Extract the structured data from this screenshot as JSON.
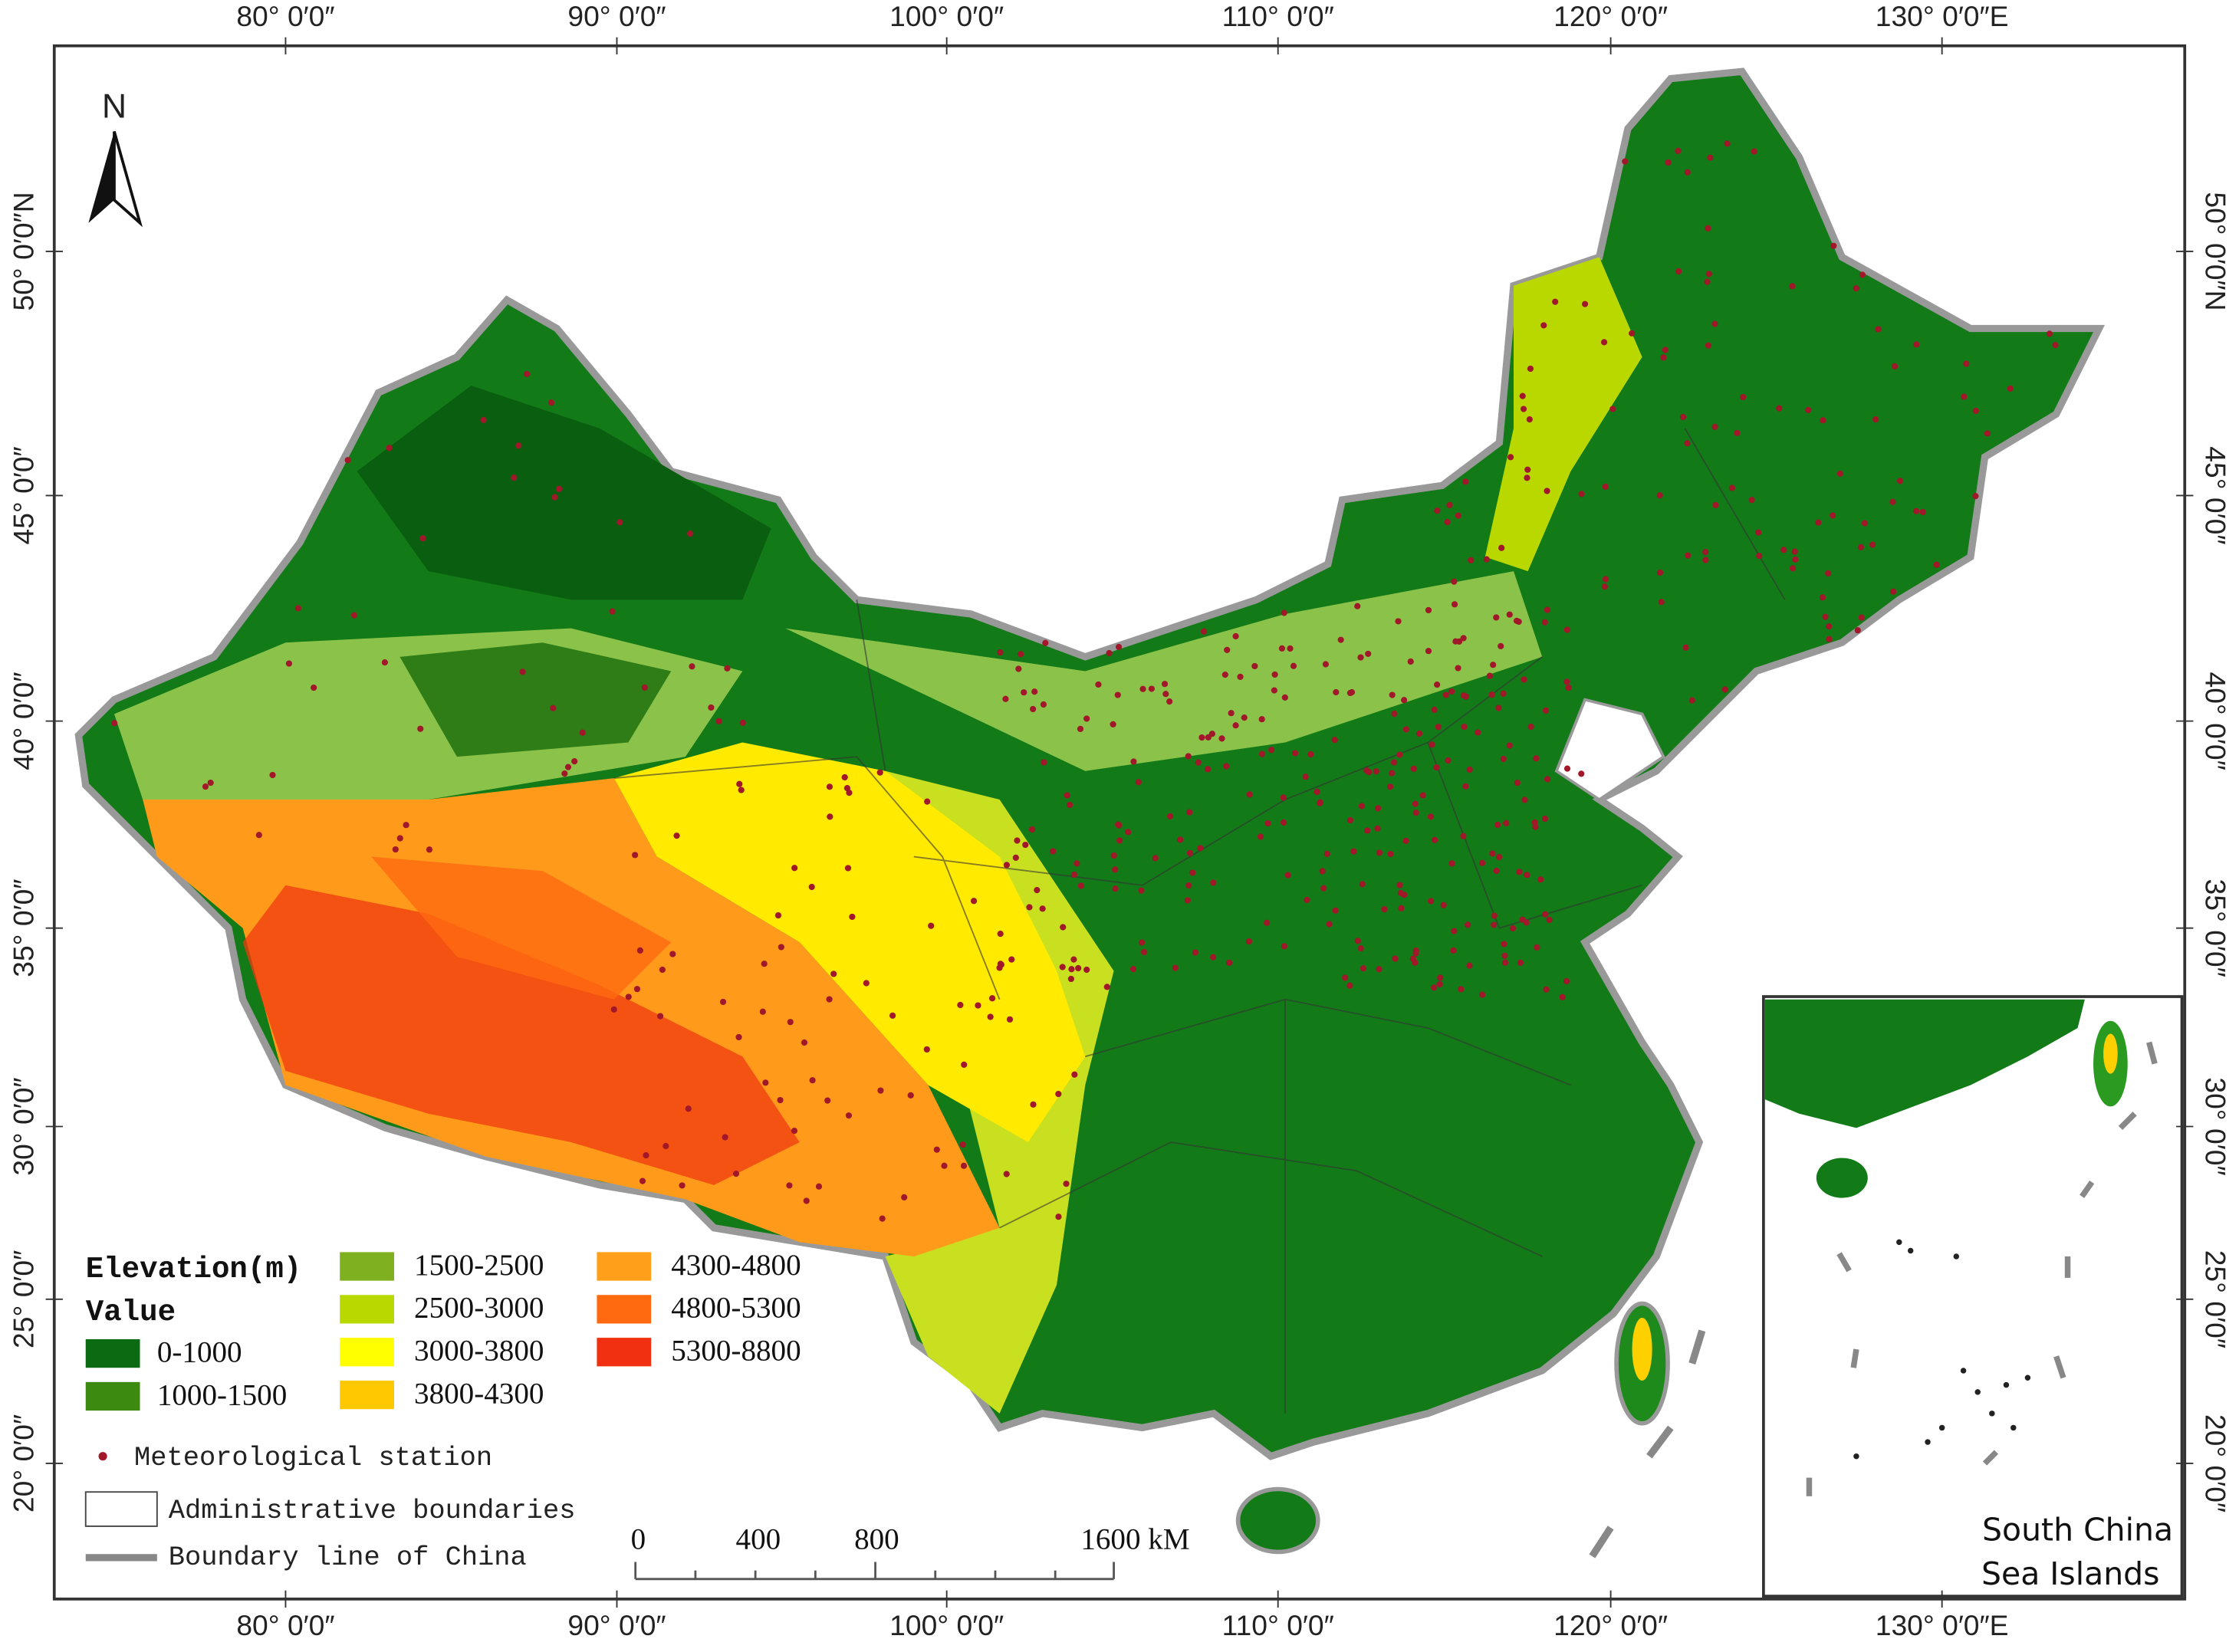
{
  "map": {
    "graticule": {
      "longitude_labels": [
        "80° 0′0″",
        "90° 0′0″",
        "100° 0′0″",
        "110° 0′0″",
        "120° 0′0″",
        "130° 0′0″E"
      ],
      "latitude_labels": [
        "50° 0′0″N",
        "45° 0′0″",
        "40° 0′0″",
        "35° 0′0″",
        "30° 0′0″",
        "25° 0′0″",
        "20° 0′0″"
      ]
    },
    "north_arrow": "N",
    "legend": {
      "title": "Elevation(m)",
      "subtitle": "Value",
      "classes": [
        {
          "label": "0-1000",
          "color": "#0b6b12"
        },
        {
          "label": "1000-1500",
          "color": "#3d8a10"
        },
        {
          "label": "1500-2500",
          "color": "#7fb020"
        },
        {
          "label": "2500-3000",
          "color": "#b9d800"
        },
        {
          "label": "3000-3800",
          "color": "#ffff00"
        },
        {
          "label": "3800-4300",
          "color": "#ffc800"
        },
        {
          "label": "4300-4800",
          "color": "#ff9f1a"
        },
        {
          "label": "4800-5300",
          "color": "#ff6a10"
        },
        {
          "label": "5300-8800",
          "color": "#f03010"
        }
      ],
      "station": "Meteorological station",
      "admin": "Administrative boundaries",
      "boundary": "Boundary line of China"
    },
    "scale_bar": [
      "0",
      "400",
      "800",
      "1600 kM"
    ],
    "inset_label": [
      "South China",
      "Sea Islands"
    ]
  }
}
